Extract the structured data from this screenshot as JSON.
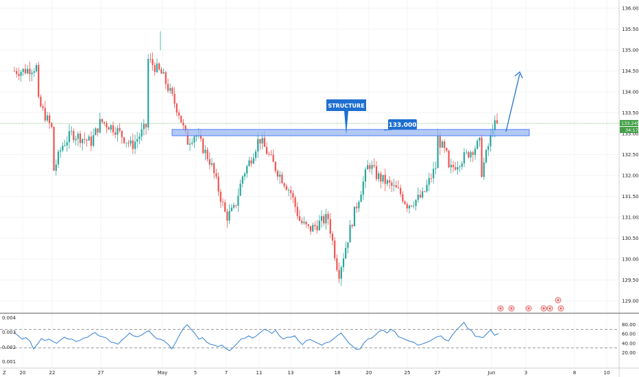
{
  "chart_data": [
    {
      "type": "candlestick",
      "ylim": [
        128.8,
        136.1
      ],
      "y_ticks": [
        "136.000",
        "135.500",
        "135.000",
        "134.500",
        "134.000",
        "133.500",
        "133.000",
        "132.500",
        "132.000",
        "131.500",
        "131.000",
        "130.500",
        "130.000",
        "129.500",
        "129.000"
      ],
      "x_ticks": [
        "20",
        "22",
        "27",
        "May",
        "5",
        "7",
        "11",
        "13",
        "18",
        "20",
        "25",
        "27",
        "Jun",
        "3",
        "8",
        "10"
      ],
      "grid": true,
      "colors": {
        "up": "#26a69a",
        "down": "#ef5350",
        "zone_fill": "#9ab8ef",
        "zone_stroke": "#2962ff",
        "annotation": "#1e6fd0",
        "price_line": "#43a047"
      },
      "price_path": [
        {
          "d": "Apr 20",
          "p": 134.5
        },
        {
          "d": "Apr 21",
          "p": 134.6
        },
        {
          "d": "Apr 21",
          "p": 133.8
        },
        {
          "d": "Apr 22",
          "p": 133.1
        },
        {
          "d": "Apr 22",
          "p": 132.0
        },
        {
          "d": "Apr 23",
          "p": 132.7
        },
        {
          "d": "Apr 24",
          "p": 133.0
        },
        {
          "d": "Apr 26",
          "p": 132.8
        },
        {
          "d": "Apr 27",
          "p": 133.3
        },
        {
          "d": "Apr 28",
          "p": 133.1
        },
        {
          "d": "Apr 29",
          "p": 132.7
        },
        {
          "d": "Apr 30",
          "p": 133.2
        },
        {
          "d": "Apr 30",
          "p": 134.8
        },
        {
          "d": "May 1",
          "p": 134.4
        },
        {
          "d": "May 3",
          "p": 133.5
        },
        {
          "d": "May 4",
          "p": 132.8
        },
        {
          "d": "May 5",
          "p": 133.0
        },
        {
          "d": "May 6",
          "p": 132.3
        },
        {
          "d": "May 7",
          "p": 131.0
        },
        {
          "d": "May 8",
          "p": 131.2
        },
        {
          "d": "May 9",
          "p": 132.0
        },
        {
          "d": "May 10",
          "p": 132.4
        },
        {
          "d": "May 11",
          "p": 132.9
        },
        {
          "d": "May 12",
          "p": 132.2
        },
        {
          "d": "May 13",
          "p": 131.6
        },
        {
          "d": "May 14",
          "p": 130.9
        },
        {
          "d": "May 15",
          "p": 130.7
        },
        {
          "d": "May 17",
          "p": 131.0
        },
        {
          "d": "May 18",
          "p": 129.8
        },
        {
          "d": "May 18",
          "p": 129.5
        },
        {
          "d": "May 19",
          "p": 131.0
        },
        {
          "d": "May 20",
          "p": 132.3
        },
        {
          "d": "May 21",
          "p": 132.0
        },
        {
          "d": "May 24",
          "p": 131.6
        },
        {
          "d": "May 25",
          "p": 131.3
        },
        {
          "d": "May 26",
          "p": 131.5
        },
        {
          "d": "May 27",
          "p": 132.3
        },
        {
          "d": "May 27",
          "p": 132.9
        },
        {
          "d": "May 28",
          "p": 132.4
        },
        {
          "d": "May 28",
          "p": 132.1
        },
        {
          "d": "May 31",
          "p": 132.8
        },
        {
          "d": "May 31",
          "p": 132.0
        },
        {
          "d": "Jun 1",
          "p": 133.0
        },
        {
          "d": "Jun 1",
          "p": 133.6
        },
        {
          "d": "Jun 1",
          "p": 133.2
        }
      ],
      "current_price": "133.245",
      "countdown": "34:17",
      "zone": {
        "label": "133.000",
        "low": 132.95,
        "high": 133.1,
        "x_start": "May 4",
        "x_end": "Jun 3"
      },
      "callout": {
        "label": "STRUCTURE",
        "x": "May 18",
        "y": 133.0
      },
      "projection_arrow": {
        "from": {
          "x": "Jun 2",
          "y": 133.1
        },
        "to": {
          "x": "Jun 3",
          "y": 134.5
        }
      }
    },
    {
      "type": "line",
      "name": "indicator",
      "ylim_left": [
        0.0008,
        0.0043
      ],
      "left_ticks": [
        "0.004",
        "0.003",
        "0.002",
        "0.001"
      ],
      "right_ticks": [
        "80.00",
        "60.00",
        "40.00",
        "20.00"
      ],
      "levels": [
        70,
        30
      ],
      "line_color": "#2f7fd3",
      "values": [
        63,
        56,
        49,
        52,
        45,
        28,
        38,
        50,
        46,
        49,
        44,
        40,
        47,
        53,
        49,
        49,
        44,
        46,
        51,
        53,
        59,
        63,
        56,
        54,
        51,
        43,
        41,
        38,
        47,
        54,
        62,
        56,
        54,
        57,
        63,
        67,
        58,
        50,
        49,
        45,
        38,
        28,
        42,
        58,
        72,
        80,
        70,
        61,
        49,
        52,
        43,
        38,
        36,
        33,
        36,
        29,
        24,
        31,
        40,
        49,
        51,
        56,
        51,
        56,
        63,
        70,
        67,
        61,
        68,
        56,
        49,
        53,
        53,
        56,
        45,
        37,
        46,
        48,
        44,
        40,
        36,
        41,
        43,
        49,
        56,
        62,
        52,
        41,
        34,
        27,
        28,
        41,
        49,
        51,
        58,
        66,
        68,
        62,
        70,
        65,
        54,
        51,
        47,
        44,
        42,
        36,
        38,
        41,
        44,
        49,
        54,
        56,
        48,
        45,
        58,
        68,
        76,
        85,
        72,
        67,
        55,
        54,
        52,
        61,
        69,
        57,
        61
      ]
    }
  ],
  "bottom_left_char": "Z"
}
